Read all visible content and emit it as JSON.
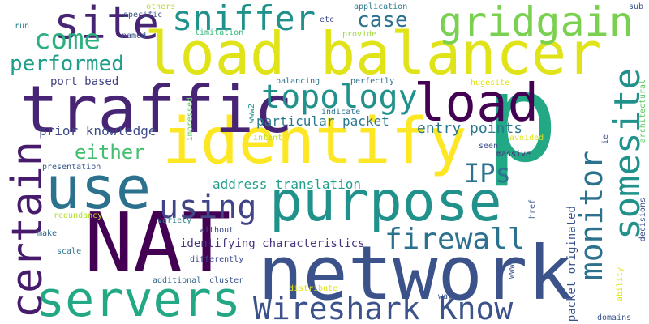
{
  "words": [
    {
      "text": "p",
      "color": "#22a884"
    },
    {
      "text": "network",
      "color": "#3b528b"
    },
    {
      "text": "load balancer",
      "color": "#dfe318"
    },
    {
      "text": "NAT",
      "color": "#440154"
    },
    {
      "text": "identify",
      "color": "#fde725"
    },
    {
      "text": "traffic",
      "color": "#482475"
    },
    {
      "text": "purpose",
      "color": "#21918c"
    },
    {
      "text": "servers",
      "color": "#22a884"
    },
    {
      "text": "use",
      "color": "#2c728e"
    },
    {
      "text": "load",
      "color": "#440154"
    },
    {
      "text": "gridgain",
      "color": "#7ad151"
    },
    {
      "text": "site",
      "color": "#482475"
    },
    {
      "text": "Wireshark Know",
      "color": "#3b528b"
    },
    {
      "text": "certain",
      "color": "#481a6c"
    },
    {
      "text": "monitor",
      "color": "#2c728e"
    },
    {
      "text": "somesite",
      "color": "#21918c"
    },
    {
      "text": "sniffer",
      "color": "#21918c"
    },
    {
      "text": "topology",
      "color": "#21918c"
    },
    {
      "text": "using",
      "color": "#414487"
    },
    {
      "text": "come",
      "color": "#2ab07f"
    },
    {
      "text": "firewall",
      "color": "#2c728e"
    },
    {
      "text": "IPs",
      "color": "#2c728e"
    },
    {
      "text": "case",
      "color": "#2c728e"
    },
    {
      "text": "performed",
      "color": "#1f9e89"
    },
    {
      "text": "either",
      "color": "#44bf70"
    },
    {
      "text": "entry points",
      "color": "#2a788e"
    },
    {
      "text": "prior knowledge",
      "color": "#3e4a89"
    },
    {
      "text": "particular packet",
      "color": "#2a788e"
    },
    {
      "text": "address translation",
      "color": "#1f9e89"
    },
    {
      "text": "packet originated",
      "color": "#3b528b"
    },
    {
      "text": "identifying characteristics",
      "color": "#46337e"
    },
    {
      "text": "port based",
      "color": "#414487"
    },
    {
      "text": "application",
      "color": "#2a788e"
    },
    {
      "text": "others",
      "color": "#b5de2b"
    },
    {
      "text": "specific",
      "color": "#38598c"
    },
    {
      "text": "run",
      "color": "#26828e"
    },
    {
      "text": "named",
      "color": "#3b528b"
    },
    {
      "text": "limitation",
      "color": "#35b779"
    },
    {
      "text": "etc",
      "color": "#3e4a89"
    },
    {
      "text": "provide",
      "color": "#a0da39"
    },
    {
      "text": "sub",
      "color": "#3b528b"
    },
    {
      "text": "balancing",
      "color": "#2c728e"
    },
    {
      "text": "perfectly",
      "color": "#2c728e"
    },
    {
      "text": "hugesite",
      "color": "#dfe318"
    },
    {
      "text": "www2",
      "color": "#21918c"
    },
    {
      "text": "indicate",
      "color": "#2c728e"
    },
    {
      "text": "impressed",
      "color": "#5ec962"
    },
    {
      "text": "intent",
      "color": "#b5de2b"
    },
    {
      "text": "avoided",
      "color": "#dfe318"
    },
    {
      "text": "seen",
      "color": "#3b528b"
    },
    {
      "text": "massive",
      "color": "#472d7b"
    },
    {
      "text": "ie",
      "color": "#3b528b"
    },
    {
      "text": "architectural",
      "color": "#5ec962"
    },
    {
      "text": "presentation",
      "color": "#38598c"
    },
    {
      "text": "redundancy",
      "color": "#b5de2b"
    },
    {
      "text": "variety",
      "color": "#26828e"
    },
    {
      "text": "href",
      "color": "#38598c"
    },
    {
      "text": "make",
      "color": "#31688e"
    },
    {
      "text": "without",
      "color": "#3e4a89"
    },
    {
      "text": "scale",
      "color": "#2c728e"
    },
    {
      "text": "differently",
      "color": "#3e4a89"
    },
    {
      "text": "additional",
      "color": "#31688e"
    },
    {
      "text": "cluster",
      "color": "#3b528b"
    },
    {
      "text": "distribute",
      "color": "#dfe318"
    },
    {
      "text": "www3",
      "color": "#3b528b"
    },
    {
      "text": "way",
      "color": "#3b528b"
    },
    {
      "text": "ability",
      "color": "#dfe318"
    },
    {
      "text": "decisions",
      "color": "#3b528b"
    },
    {
      "text": "domains",
      "color": "#3b528b"
    }
  ]
}
